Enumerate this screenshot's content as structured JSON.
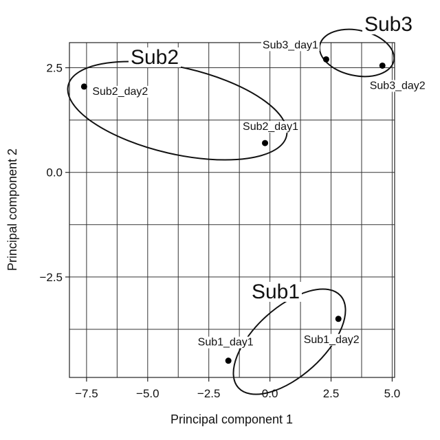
{
  "chart_data": {
    "type": "scatter",
    "xlabel": "Principal component 1",
    "ylabel": "Principal component 2",
    "xlim": [
      -8.2,
      5.1
    ],
    "ylim": [
      -4.9,
      3.1
    ],
    "xticks": [
      -7.5,
      -5.0,
      -2.5,
      0.0,
      2.5,
      5.0
    ],
    "xtick_labels": [
      "−7.5",
      "−5.0",
      "−2.5",
      "0.0",
      "2.5",
      "5.0"
    ],
    "yticks": [
      -2.5,
      0.0,
      2.5
    ],
    "ytick_labels": [
      "−2.5",
      "0.0",
      "2.5"
    ],
    "grid": true,
    "points": [
      {
        "label": "Sub1_day1",
        "x": -1.7,
        "y": -4.5
      },
      {
        "label": "Sub1_day2",
        "x": 2.8,
        "y": -3.5
      },
      {
        "label": "Sub2_day1",
        "x": -0.2,
        "y": 0.7
      },
      {
        "label": "Sub2_day2",
        "x": -7.6,
        "y": 2.05
      },
      {
        "label": "Sub3_day1",
        "x": 2.3,
        "y": 2.7
      },
      {
        "label": "Sub3_day2",
        "x": 4.6,
        "y": 2.55
      }
    ],
    "groups": [
      {
        "label": "Sub1",
        "members": [
          "Sub1_day1",
          "Sub1_day2"
        ]
      },
      {
        "label": "Sub2",
        "members": [
          "Sub2_day1",
          "Sub2_day2"
        ]
      },
      {
        "label": "Sub3",
        "members": [
          "Sub3_day1",
          "Sub3_day2"
        ]
      }
    ]
  }
}
